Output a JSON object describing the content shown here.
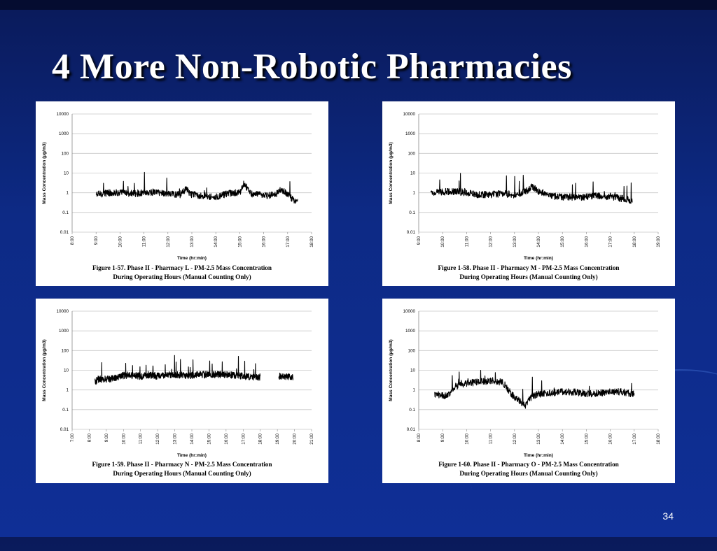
{
  "slide": {
    "title": "4 More Non-Robotic Pharmacies",
    "page_number": "34",
    "colors": {
      "background": "#0f2f96",
      "title": "#ffffff",
      "panel": "#ffffff",
      "trace": "#000000",
      "grid": "#c8c8c8"
    }
  },
  "chart_data": [
    {
      "type": "line",
      "xlabel": "Time (hr:min)",
      "ylabel": "Mass Concentration (µg/m3)",
      "yscale": "log",
      "ylim": [
        0.01,
        10000
      ],
      "yticks": [
        "10000",
        "1000",
        "100",
        "10",
        "1",
        "0.1",
        "0.01"
      ],
      "xticks": [
        "8:00",
        "9:00",
        "10:00",
        "11:00",
        "12:00",
        "13:00",
        "14:00",
        "15:00",
        "16:00",
        "17:00",
        "18:00"
      ],
      "xlim": [
        "8:00",
        "18:00"
      ],
      "grid": true,
      "caption_line1": "Figure 1-57.  Phase II - Pharmacy L - PM-2.5 Mass Concentration",
      "caption_line2": "During Operating Hours (Manual Counting Only)",
      "series": [
        {
          "x": [
            "9:00",
            "9:30",
            "10:00",
            "10:30",
            "11:00",
            "11:30",
            "12:00",
            "12:30",
            "12:45",
            "13:00",
            "13:30",
            "14:00",
            "14:30",
            "15:00",
            "15:10",
            "15:30",
            "16:00",
            "16:30",
            "16:45",
            "17:00",
            "17:15",
            "17:25"
          ],
          "values": [
            0.8,
            1.0,
            1.0,
            0.9,
            1.0,
            1.1,
            0.9,
            0.8,
            1.5,
            0.8,
            0.7,
            0.6,
            0.9,
            1.0,
            3.0,
            0.9,
            0.7,
            0.8,
            1.5,
            0.8,
            0.45,
            0.35
          ]
        }
      ]
    },
    {
      "type": "line",
      "xlabel": "Time (hr:min)",
      "ylabel": "Mass Concentration (µg/m3)",
      "yscale": "log",
      "ylim": [
        0.01,
        10000
      ],
      "yticks": [
        "10000",
        "1000",
        "100",
        "10",
        "1",
        "0.1",
        "0.01"
      ],
      "xticks": [
        "9:00",
        "10:00",
        "11:00",
        "12:00",
        "13:00",
        "14:00",
        "15:00",
        "16:00",
        "17:00",
        "18:00",
        "19:00"
      ],
      "xlim": [
        "9:00",
        "19:00"
      ],
      "grid": true,
      "caption_line1": "Figure 1-58.  Phase II - Pharmacy M - PM-2.5 Mass Concentration",
      "caption_line2": "During Operating Hours (Manual Counting Only)",
      "series": [
        {
          "x": [
            "9:30",
            "10:00",
            "10:30",
            "11:00",
            "11:30",
            "12:00",
            "12:30",
            "13:00",
            "13:30",
            "13:45",
            "14:00",
            "14:30",
            "15:00",
            "15:30",
            "16:00",
            "16:30",
            "17:00",
            "17:30",
            "17:55"
          ],
          "values": [
            1.0,
            1.1,
            1.2,
            1.0,
            0.8,
            0.8,
            0.9,
            0.8,
            1.2,
            2.0,
            1.2,
            0.7,
            0.6,
            0.6,
            0.6,
            0.7,
            0.6,
            0.5,
            0.4
          ]
        }
      ]
    },
    {
      "type": "line",
      "xlabel": "Time (hr:min)",
      "ylabel": "Mass Concentration (µg/m3)",
      "yscale": "log",
      "ylim": [
        0.01,
        10000
      ],
      "yticks": [
        "10000",
        "1000",
        "100",
        "10",
        "1",
        "0.1",
        "0.01"
      ],
      "xticks": [
        "7:00",
        "8:00",
        "9:00",
        "10:00",
        "11:00",
        "12:00",
        "13:00",
        "14:00",
        "15:00",
        "16:00",
        "17:00",
        "18:00",
        "19:00",
        "20:00",
        "21:00"
      ],
      "xlim": [
        "7:00",
        "21:00"
      ],
      "grid": true,
      "caption_line1": "Figure 1-59.  Phase II - Pharmacy N - PM-2.5 Mass Concentration",
      "caption_line2": "During Operating Hours (Manual Counting Only)",
      "series": [
        {
          "x": [
            "8:20",
            "8:30",
            "9:00",
            "9:30",
            "10:00",
            "10:30",
            "11:00",
            "11:30",
            "12:00",
            "12:30",
            "13:00",
            "13:30",
            "14:00",
            "14:30",
            "15:00",
            "15:30",
            "16:00",
            "16:30",
            "17:00",
            "17:30",
            "18:00"
          ],
          "values": [
            2.5,
            3.5,
            3.5,
            4.0,
            5.5,
            5.5,
            5.0,
            5.5,
            5.0,
            5.5,
            6.0,
            5.5,
            5.5,
            6.0,
            6.0,
            6.0,
            6.0,
            5.5,
            5.0,
            4.5,
            4.5
          ]
        },
        {
          "x": [
            "19:05",
            "19:30",
            "19:55"
          ],
          "values": [
            5.0,
            4.5,
            4.5
          ]
        }
      ]
    },
    {
      "type": "line",
      "xlabel": "Time (hr:min)",
      "ylabel": "Mass Concentration (µg/m3)",
      "yscale": "log",
      "ylim": [
        0.01,
        10000
      ],
      "yticks": [
        "10000",
        "1000",
        "100",
        "10",
        "1",
        "0.1",
        "0.01"
      ],
      "xticks": [
        "8:00",
        "9:00",
        "10:00",
        "11:00",
        "12:00",
        "13:00",
        "14:00",
        "15:00",
        "16:00",
        "17:00",
        "18:00"
      ],
      "xlim": [
        "8:00",
        "18:00"
      ],
      "grid": true,
      "caption_line1": "Figure 1-60.  Phase II - Pharmacy O - PM-2.5 Mass Concentration",
      "caption_line2": "During Operating Hours (Manual Counting Only)",
      "series": [
        {
          "x": [
            "8:40",
            "9:00",
            "9:15",
            "9:30",
            "10:00",
            "10:30",
            "11:00",
            "11:30",
            "11:45",
            "12:00",
            "12:15",
            "12:25",
            "12:45",
            "13:00",
            "13:30",
            "14:00",
            "14:30",
            "15:00",
            "15:30",
            "16:00",
            "16:30",
            "17:00"
          ],
          "values": [
            0.6,
            0.5,
            0.6,
            1.5,
            2.2,
            2.5,
            3.0,
            2.5,
            1.0,
            0.4,
            0.25,
            0.15,
            0.5,
            0.6,
            0.7,
            0.8,
            0.8,
            0.6,
            0.7,
            0.8,
            0.8,
            0.6
          ]
        }
      ]
    }
  ]
}
